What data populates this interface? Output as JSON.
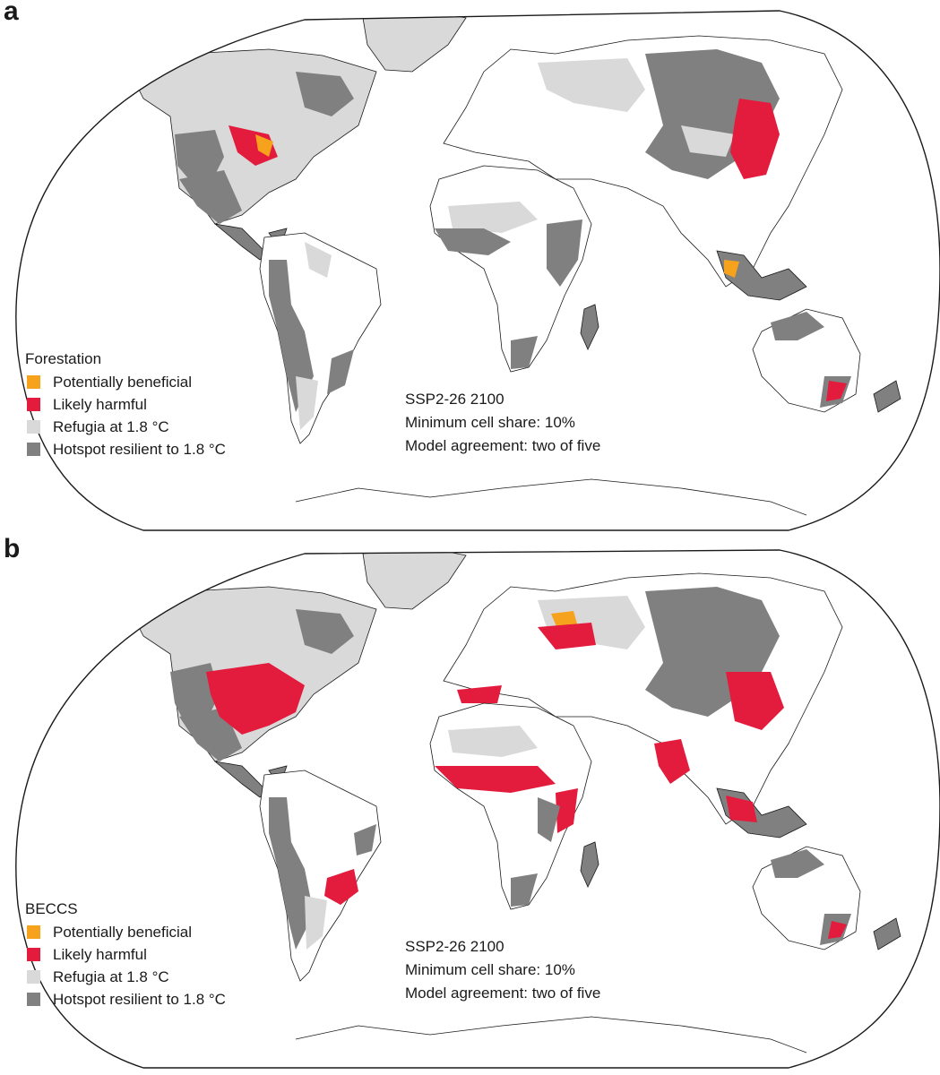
{
  "colors": {
    "beneficial": "#f6a21d",
    "harmful": "#e31b3d",
    "refugia": "#d9d9d9",
    "hotspot": "#808080",
    "outline": "#1a1a1a"
  },
  "panels": [
    {
      "letter": "a",
      "legend": {
        "title": "Forestation",
        "items": [
          {
            "label": "Potentially beneficial",
            "color": "#f6a21d"
          },
          {
            "label": "Likely harmful",
            "color": "#e31b3d"
          },
          {
            "label": "Refugia at 1.8 °C",
            "color": "#d9d9d9"
          },
          {
            "label": "Hotspot resilient to 1.8 °C",
            "color": "#808080"
          }
        ]
      },
      "info": {
        "scenario": "SSP2-26 2100",
        "cell_share": "Minimum cell share: 10%",
        "agreement": "Model agreement: two of five"
      }
    },
    {
      "letter": "b",
      "legend": {
        "title": "BECCS",
        "items": [
          {
            "label": "Potentially beneficial",
            "color": "#f6a21d"
          },
          {
            "label": "Likely harmful",
            "color": "#e31b3d"
          },
          {
            "label": "Refugia at 1.8 °C",
            "color": "#d9d9d9"
          },
          {
            "label": "Hotspot resilient to 1.8 °C",
            "color": "#808080"
          }
        ]
      },
      "info": {
        "scenario": "SSP2-26 2100",
        "cell_share": "Minimum cell share: 10%",
        "agreement": "Model agreement: two of five"
      }
    }
  ]
}
